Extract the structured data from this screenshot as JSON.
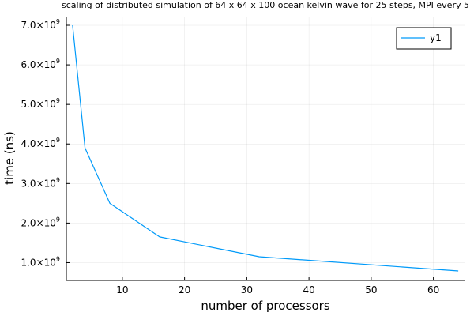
{
  "chart_data": {
    "type": "line",
    "title": "scaling of distributed simulation of 64 x 64 x 100 ocean kelvin wave for 25 steps, MPI every 5",
    "xlabel": "number of processors",
    "ylabel": "time (ns)",
    "xlim": [
      1,
      65
    ],
    "ylim": [
      550000000,
      7200000000
    ],
    "x_ticks": [
      10,
      20,
      30,
      40,
      50,
      60
    ],
    "y_ticks": [
      {
        "value": 1000000000,
        "mantissa": "1.0×10",
        "exponent": "9"
      },
      {
        "value": 2000000000,
        "mantissa": "2.0×10",
        "exponent": "9"
      },
      {
        "value": 3000000000,
        "mantissa": "3.0×10",
        "exponent": "9"
      },
      {
        "value": 4000000000,
        "mantissa": "4.0×10",
        "exponent": "9"
      },
      {
        "value": 5000000000,
        "mantissa": "5.0×10",
        "exponent": "9"
      },
      {
        "value": 6000000000,
        "mantissa": "6.0×10",
        "exponent": "9"
      },
      {
        "value": 7000000000,
        "mantissa": "7.0×10",
        "exponent": "9"
      }
    ],
    "grid": true,
    "legend_position": "top-right",
    "series": [
      {
        "name": "y1",
        "color": "#009af9",
        "x": [
          2,
          4,
          8,
          16,
          32,
          64
        ],
        "y": [
          7000000000,
          3900000000,
          2500000000,
          1650000000,
          1150000000,
          790000000
        ]
      }
    ]
  }
}
